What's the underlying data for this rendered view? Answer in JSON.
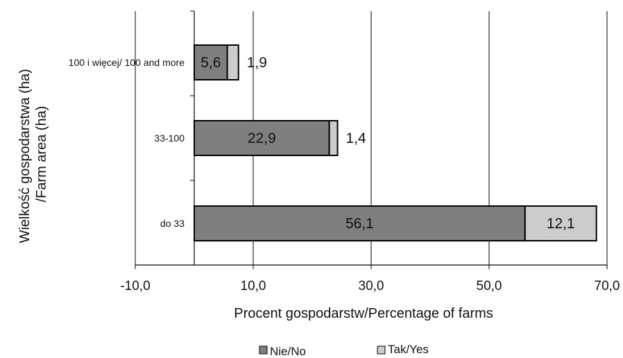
{
  "chart_data": {
    "type": "bar",
    "orientation": "horizontal",
    "stacked": true,
    "xlabel": "Procent gospodarstw/Percentage of farms",
    "ylabel_lines": [
      "Wielkość gospodarstwa (ha)",
      "/Farm area (ha)"
    ],
    "categories": [
      "100 i więcej/ 100 and more",
      "33-100",
      "do 33"
    ],
    "series": [
      {
        "name": "Nie/No",
        "values": [
          5.6,
          22.9,
          56.1
        ],
        "labels": [
          "5,6",
          "22,9",
          "56,1"
        ],
        "color": "#7f7f7f"
      },
      {
        "name": "Tak/Yes",
        "values": [
          1.9,
          1.4,
          12.1
        ],
        "labels": [
          "1,9",
          "1,4",
          "12,1"
        ],
        "color": "#cccccc"
      }
    ],
    "xlim": [
      -10,
      70
    ],
    "xticks": [
      -10,
      10,
      30,
      50,
      70
    ],
    "xtick_labels": [
      "-10,0",
      "10,0",
      "30,0",
      "50,0",
      "70,0"
    ],
    "grid": "vertical",
    "legend_position": "bottom"
  }
}
